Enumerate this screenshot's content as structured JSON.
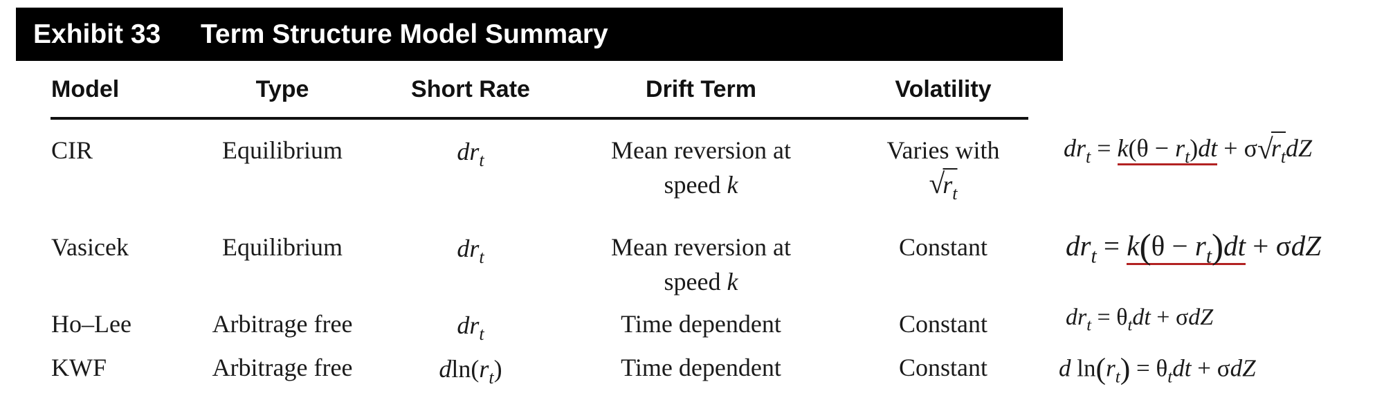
{
  "exhibit": {
    "number": "Exhibit 33",
    "title": "Term Structure Model Summary"
  },
  "columns": [
    "Model",
    "Type",
    "Short Rate",
    "Drift Term",
    "Volatility"
  ],
  "rows": [
    {
      "model": "CIR",
      "type": "Equilibrium",
      "short_rate": {
        "prefix": "dr",
        "sub": "t"
      },
      "drift": [
        "Mean reversion at",
        "speed k"
      ],
      "volatility": [
        "Varies with",
        "√r_t"
      ]
    },
    {
      "model": "Vasicek",
      "type": "Equilibrium",
      "short_rate": {
        "prefix": "dr",
        "sub": "t"
      },
      "drift": [
        "Mean reversion at",
        "speed k"
      ],
      "volatility": [
        "Constant"
      ]
    },
    {
      "model": "Ho–Lee",
      "type": "Arbitrage free",
      "short_rate": {
        "prefix": "dr",
        "sub": "t"
      },
      "drift": [
        "Time dependent"
      ],
      "volatility": [
        "Constant"
      ]
    },
    {
      "model": "KWF",
      "type": "Arbitrage free",
      "short_rate": {
        "prefix": "dln(r",
        "sub": "t",
        "suffix": ")"
      },
      "drift": [
        "Time dependent"
      ],
      "volatility": [
        "Constant"
      ]
    }
  ],
  "formulas": {
    "cir": "dr_t = k(θ − r_t)dt + σ√(r_t) dZ",
    "vasicek": "dr_t = k(θ − r_t)dt + σdZ",
    "ho_lee": "dr_t = θ_t dt + σdZ",
    "kwf": "d ln(r_t) = θ_t dt + σdZ"
  },
  "colors": {
    "banner": "#000000",
    "underline": "#b22222"
  }
}
